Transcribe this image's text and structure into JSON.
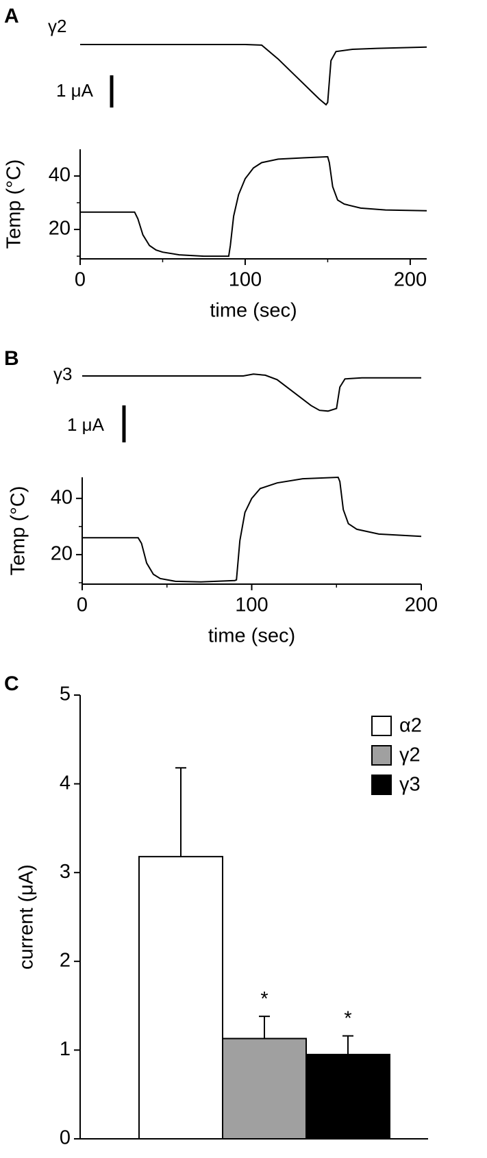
{
  "chart_data": [
    {
      "type": "line",
      "panel": "A",
      "scale_bar": {
        "value": 1,
        "label": "1 μA"
      },
      "series": [
        {
          "name": "γ2",
          "color": "#000000",
          "x": [
            0,
            90,
            100,
            110,
            120,
            130,
            140,
            145,
            149,
            150,
            152,
            155,
            165,
            180,
            210
          ],
          "values": [
            0,
            0,
            0,
            -0.02,
            -0.45,
            -0.95,
            -1.45,
            -1.7,
            -1.87,
            -1.8,
            -0.5,
            -0.22,
            -0.15,
            -0.12,
            -0.08
          ]
        }
      ]
    },
    {
      "type": "line",
      "x_label": "time (sec)",
      "y_label": "Temp (°C)",
      "xlim": [
        0,
        210
      ],
      "ylim": [
        9,
        50
      ],
      "xticks": [
        0,
        100,
        200
      ],
      "xminorticks": [
        50,
        150
      ],
      "yticks": [
        20,
        40
      ],
      "yminorticks": [
        10,
        30
      ],
      "series": [
        {
          "color": "#000000",
          "x": [
            0,
            33,
            35,
            38,
            42,
            46,
            50,
            60,
            75,
            90,
            91,
            93,
            96,
            100,
            105,
            110,
            120,
            135,
            150,
            151,
            153,
            156,
            160,
            170,
            185,
            210
          ],
          "values": [
            26.5,
            26.5,
            24,
            18,
            14,
            12.3,
            11.5,
            10.5,
            10,
            10,
            14,
            25,
            33,
            39,
            43,
            45,
            46.3,
            46.8,
            47.2,
            45,
            36,
            31,
            29.5,
            28,
            27.3,
            27
          ]
        }
      ]
    },
    {
      "type": "line",
      "panel": "B",
      "scale_bar": {
        "value": 1,
        "label": "1 μA"
      },
      "series": [
        {
          "name": "γ3",
          "color": "#000000",
          "x": [
            0,
            95,
            101,
            108,
            115,
            125,
            135,
            140,
            145,
            150,
            152,
            155,
            165,
            200
          ],
          "values": [
            0,
            0,
            0.05,
            0.02,
            -0.1,
            -0.45,
            -0.8,
            -0.93,
            -0.95,
            -0.88,
            -0.3,
            -0.08,
            -0.05,
            -0.05
          ]
        }
      ]
    },
    {
      "type": "line",
      "x_label": "time (sec)",
      "y_label": "Temp (°C)",
      "xlim": [
        0,
        200
      ],
      "ylim": [
        9.5,
        47.5
      ],
      "xticks": [
        0,
        100,
        200
      ],
      "xminorticks": [
        50,
        150
      ],
      "yticks": [
        20,
        40
      ],
      "yminorticks": [
        10,
        30
      ],
      "series": [
        {
          "color": "#000000",
          "x": [
            0,
            33,
            35,
            38,
            42,
            46,
            55,
            70,
            90,
            91,
            93,
            96,
            100,
            105,
            115,
            130,
            151,
            152,
            154,
            157,
            162,
            175,
            200
          ],
          "values": [
            26,
            26,
            24,
            17,
            13,
            11.5,
            10.5,
            10.3,
            10.8,
            11,
            25,
            35,
            40,
            43.5,
            45.5,
            47,
            47.5,
            46,
            36,
            31,
            29,
            27.3,
            26.5
          ]
        }
      ]
    },
    {
      "type": "bar",
      "panel": "C",
      "y_label": "current (μA)",
      "categories": [
        null
      ],
      "ylim": [
        0,
        5
      ],
      "yticks": [
        0,
        1,
        2,
        3,
        4,
        5
      ],
      "legend": "upper right",
      "series": [
        {
          "name": "α2",
          "color": "#ffffff",
          "values": [
            3.18
          ],
          "errors": [
            1.0
          ]
        },
        {
          "name": "γ2",
          "color": "#a0a0a0",
          "values": [
            1.13
          ],
          "errors": [
            0.25
          ],
          "annotation": "*"
        },
        {
          "name": "γ3",
          "color": "#000000",
          "values": [
            0.95
          ],
          "errors": [
            0.21
          ],
          "annotation": "*"
        }
      ]
    }
  ]
}
